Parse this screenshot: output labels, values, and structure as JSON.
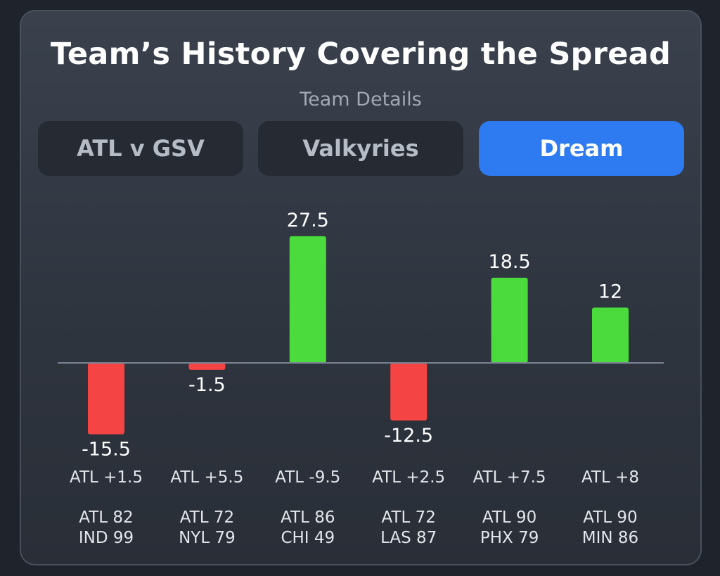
{
  "header": {
    "title": "Team’s History Covering the Spread",
    "subtitle": "Team Details"
  },
  "tabs": [
    {
      "label": "ATL v GSV",
      "active": false
    },
    {
      "label": "Valkyries",
      "active": false
    },
    {
      "label": "Dream",
      "active": true
    }
  ],
  "colors": {
    "positive": "#4cdb3d",
    "negative": "#f54444",
    "baseline": "#7a8494",
    "accent": "#2e7af0"
  },
  "chart_data": {
    "type": "bar",
    "categories": [
      "ATL +1.5",
      "ATL +5.5",
      "ATL -9.5",
      "ATL +2.5",
      "ATL +7.5",
      "ATL +8"
    ],
    "values": [
      -15.5,
      -1.5,
      27.5,
      -12.5,
      18.5,
      12
    ],
    "value_labels": [
      "-15.5",
      "-1.5",
      "27.5",
      "-12.5",
      "18.5",
      "12"
    ],
    "scores": [
      [
        "ATL 82",
        "IND 99"
      ],
      [
        "ATL 72",
        "NYL 79"
      ],
      [
        "ATL 86",
        "CHI 49"
      ],
      [
        "ATL 72",
        "LAS 87"
      ],
      [
        "ATL 90",
        "PHX 79"
      ],
      [
        "ATL 90",
        "MIN 86"
      ]
    ],
    "title": "",
    "xlabel": "",
    "ylabel": "",
    "grid": false
  }
}
